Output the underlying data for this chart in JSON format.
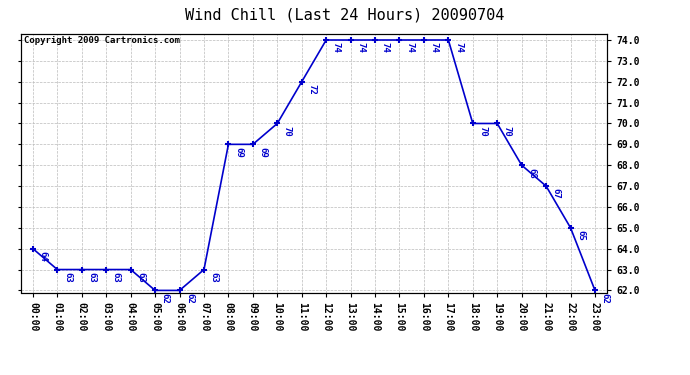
{
  "title": "Wind Chill (Last 24 Hours) 20090704",
  "copyright": "Copyright 2009 Cartronics.com",
  "hours": [
    "00:00",
    "01:00",
    "02:00",
    "03:00",
    "04:00",
    "05:00",
    "06:00",
    "07:00",
    "08:00",
    "09:00",
    "10:00",
    "11:00",
    "12:00",
    "13:00",
    "14:00",
    "15:00",
    "16:00",
    "17:00",
    "18:00",
    "19:00",
    "20:00",
    "21:00",
    "22:00",
    "23:00"
  ],
  "values": [
    64,
    63,
    63,
    63,
    63,
    62,
    62,
    63,
    69,
    69,
    70,
    72,
    74,
    74,
    74,
    74,
    74,
    74,
    70,
    70,
    68,
    67,
    65,
    62
  ],
  "ylim_min": 62.0,
  "ylim_max": 74.0,
  "line_color": "#0000cc",
  "marker_color": "#0000cc",
  "grid_color": "#bbbbbb",
  "background_color": "#ffffff",
  "title_fontsize": 11,
  "copyright_fontsize": 6.5,
  "label_fontsize": 6.5,
  "tick_fontsize": 7,
  "ytick_step": 1.0
}
